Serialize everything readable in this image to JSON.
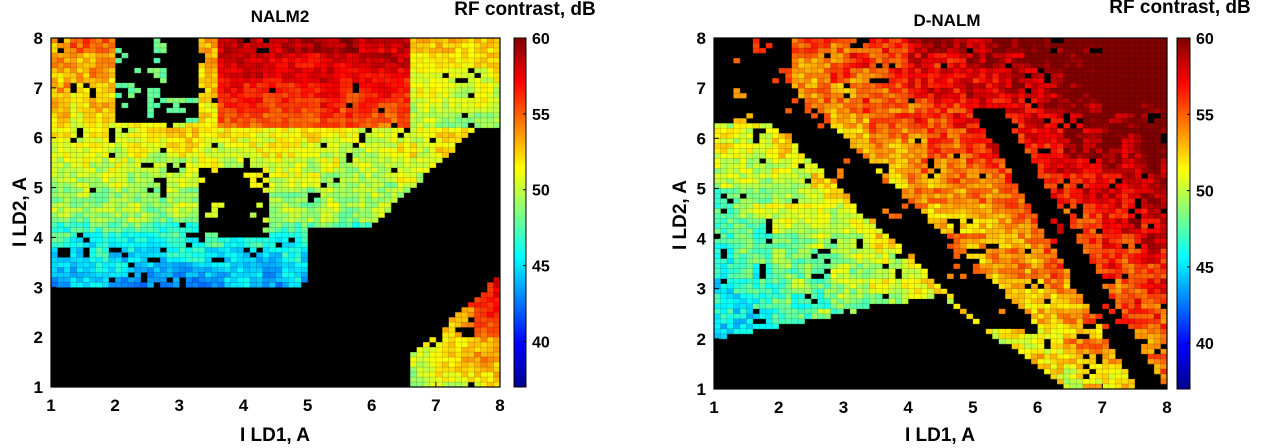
{
  "chart_data": [
    {
      "type": "heatmap",
      "title": "NALM2",
      "xlabel": "I LD1, A",
      "ylabel": "I LD2, A",
      "xlim": [
        1,
        8
      ],
      "ylim": [
        1,
        8
      ],
      "xticks": [
        "1",
        "2",
        "3",
        "4",
        "5",
        "6",
        "7",
        "8"
      ],
      "yticks": [
        "1",
        "2",
        "3",
        "4",
        "5",
        "6",
        "7",
        "8"
      ],
      "colorbar": {
        "title": "RF contrast, dB",
        "ticks": [
          "40",
          "45",
          "50",
          "55",
          "60"
        ],
        "range": [
          37,
          60
        ],
        "colormap": "jet"
      },
      "grid": true,
      "regions": [
        {
          "level": "high (55-60 dB)",
          "x": [
            3.8,
            6.5
          ],
          "y": [
            6.0,
            8.0
          ]
        },
        {
          "level": "mid (45-52 dB)",
          "x": [
            1.0,
            5.0
          ],
          "y": [
            3.0,
            7.8
          ]
        },
        {
          "level": "mid-high (47-57 dB)",
          "x": [
            6.4,
            8.0
          ],
          "y": [
            1.0,
            3.6
          ]
        },
        {
          "level": "no data (black)",
          "x": [
            1.0,
            8.0
          ],
          "y": [
            1.0,
            3.0
          ]
        }
      ]
    },
    {
      "type": "heatmap",
      "title": "D-NALM",
      "xlabel": "I LD1, A",
      "ylabel": "I LD2, A",
      "xlim": [
        1,
        8
      ],
      "ylim": [
        1,
        8
      ],
      "xticks": [
        "1",
        "2",
        "3",
        "4",
        "5",
        "6",
        "7",
        "8"
      ],
      "yticks": [
        "1",
        "2",
        "3",
        "4",
        "5",
        "6",
        "7",
        "8"
      ],
      "colorbar": {
        "title": "RF contrast, dB",
        "ticks": [
          "40",
          "45",
          "50",
          "55",
          "60"
        ],
        "range": [
          37,
          60
        ],
        "colormap": "jet"
      },
      "grid": true,
      "regions": [
        {
          "level": "high (55-60 dB)",
          "x": [
            4.0,
            8.0
          ],
          "y": [
            5.5,
            8.0
          ]
        },
        {
          "level": "mid (44-52 dB)",
          "x": [
            1.0,
            8.0
          ],
          "y": [
            1.5,
            6.0
          ]
        },
        {
          "level": "no data (black)",
          "x": [
            1.0,
            5.0
          ],
          "y": [
            1.0,
            3.0
          ]
        }
      ]
    }
  ]
}
